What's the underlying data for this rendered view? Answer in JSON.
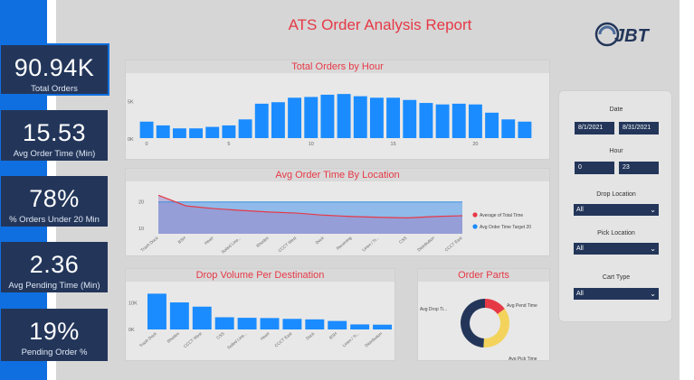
{
  "report": {
    "title": "ATS Order Analysis Report"
  },
  "kpis": [
    {
      "value": "90.94K",
      "label": "Total Orders"
    },
    {
      "value": "15.53",
      "label": "Avg Order Time (Min)"
    },
    {
      "value": "78%",
      "label": "% Orders Under 20 Min"
    },
    {
      "value": "2.36",
      "label": "Avg Pending Time (Min)"
    },
    {
      "value": "19%",
      "label": "Pending Order %"
    }
  ],
  "filters": {
    "date_label": "Date",
    "date_from": "8/1/2021",
    "date_to": "8/31/2021",
    "hour_label": "Hour",
    "hour_from": "0",
    "hour_to": "23",
    "drop_location_label": "Drop Location",
    "drop_location_value": "All",
    "pick_location_label": "Pick Location",
    "pick_location_value": "All",
    "cart_type_label": "Cart Type",
    "cart_type_value": "All"
  },
  "colors": {
    "accent": "#1a8cff",
    "red": "#e63946",
    "navy": "#23365a",
    "yellow": "#f3d35b"
  },
  "chart_data": [
    {
      "type": "bar",
      "title": "Total Orders by Hour",
      "x": [
        0,
        1,
        2,
        3,
        4,
        5,
        6,
        7,
        8,
        9,
        10,
        11,
        12,
        13,
        14,
        15,
        16,
        17,
        18,
        19,
        20,
        21,
        22,
        23
      ],
      "values": [
        2.2,
        1.7,
        1.3,
        1.3,
        1.5,
        1.7,
        2.5,
        4.6,
        4.8,
        5.4,
        5.5,
        5.8,
        5.9,
        5.6,
        5.4,
        5.4,
        5.1,
        4.7,
        4.5,
        4.6,
        4.5,
        3.4,
        2.5,
        2.2
      ],
      "ytick_labels": [
        "5K",
        "0K"
      ],
      "yticks": [
        5,
        0
      ],
      "xtick_labels": [
        "0",
        "5",
        "10",
        "15",
        "20"
      ],
      "xticks": [
        0,
        5,
        10,
        15,
        20
      ],
      "ylim": [
        0,
        7
      ]
    },
    {
      "type": "area",
      "title": "Avg Order Time By Location",
      "categories": [
        "Trash Dock",
        "BSH",
        "Heart",
        "Soiled Line...",
        "Rhodes",
        "CCCT West",
        "Dock",
        "Receiving",
        "Linen / Tr...",
        "CSS",
        "Distribution",
        "CCCT East"
      ],
      "series": [
        {
          "name": "Average of Total Time",
          "values": [
            22.5,
            18.5,
            17.5,
            16.8,
            16.2,
            15.8,
            15.0,
            14.5,
            14.2,
            14.0,
            14.5,
            14.8
          ]
        },
        {
          "name": "Avg Order Time Target 20",
          "values": [
            20,
            20,
            20,
            20,
            20,
            20,
            20,
            20,
            20,
            20,
            20,
            20
          ]
        }
      ],
      "ytick_labels": [
        "20",
        "10"
      ],
      "yticks": [
        20,
        10
      ],
      "ylim": [
        8,
        25
      ],
      "legend": "right"
    },
    {
      "type": "bar",
      "title": "Drop Volume Per Destination",
      "categories": [
        "Trash Dock",
        "Rhodes",
        "CCCT West",
        "CSS",
        "Soiled Line...",
        "Heart",
        "CCCT East",
        "Dock",
        "BSH",
        "Linen / Tr...",
        "Distribution"
      ],
      "values": [
        13.5,
        10.2,
        8.6,
        4.6,
        4.4,
        4.3,
        4.0,
        3.8,
        3.2,
        1.9,
        1.8
      ],
      "ytick_labels": [
        "10K",
        "0K"
      ],
      "yticks": [
        10,
        0
      ],
      "ylim": [
        0,
        16
      ]
    },
    {
      "type": "pie",
      "title": "Order Parts",
      "categories": [
        "Avg Pend Time",
        "Avg Pick Time",
        "Avg Drop Ti..."
      ],
      "values": [
        15,
        36,
        49
      ]
    }
  ]
}
